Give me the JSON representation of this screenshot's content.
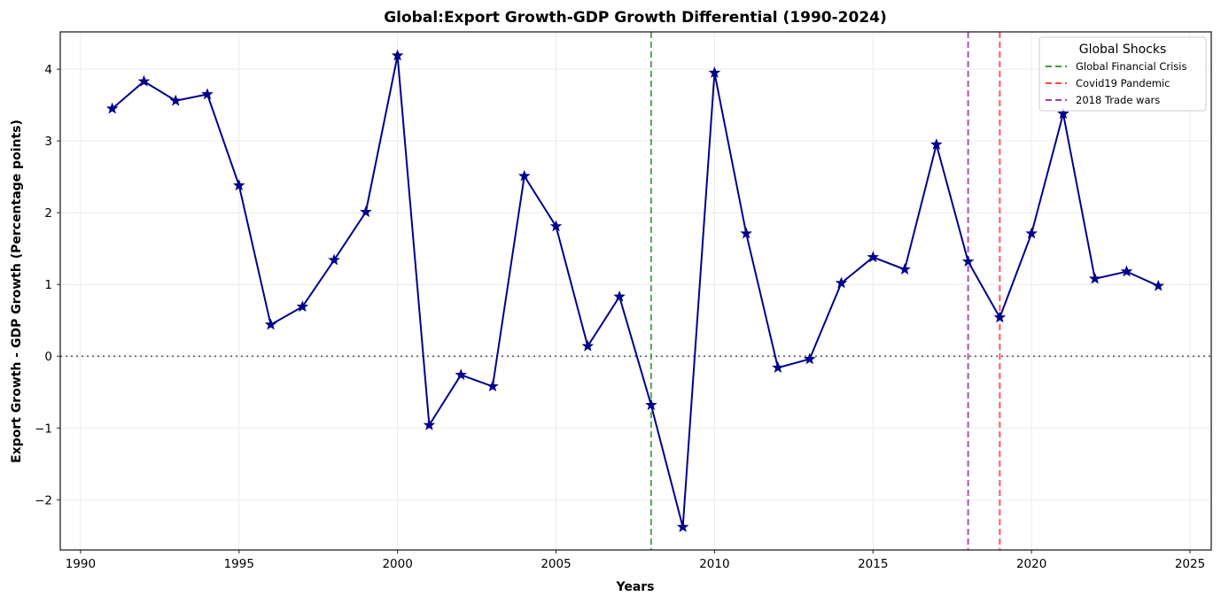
{
  "chart_data": {
    "type": "line",
    "title": "Global:Export Growth-GDP Growth Differential (1990-2024)",
    "xlabel": "Years",
    "ylabel": "Export Growth - GDP Growth (Percentage points)",
    "xlim": [
      1989.36,
      2025.67
    ],
    "ylim": [
      -2.7,
      4.52
    ],
    "xticks": [
      1990,
      1995,
      2000,
      2005,
      2010,
      2015,
      2020,
      2025
    ],
    "xtick_labels": [
      "1990",
      "1995",
      "2000",
      "2005",
      "2010",
      "2015",
      "2020",
      "2025"
    ],
    "yticks": [
      -2,
      -1,
      0,
      1,
      2,
      3,
      4
    ],
    "ytick_labels": [
      "−2",
      "−1",
      "0",
      "1",
      "2",
      "3",
      "4"
    ],
    "grid": true,
    "series": [
      {
        "name": "Export Growth - GDP Growth",
        "color": "#00008b",
        "marker": "star",
        "x": [
          1991,
          1992,
          1993,
          1994,
          1995,
          1996,
          1997,
          1998,
          1999,
          2000,
          2001,
          2002,
          2003,
          2004,
          2005,
          2006,
          2007,
          2008,
          2009,
          2010,
          2011,
          2012,
          2013,
          2014,
          2015,
          2016,
          2017,
          2018,
          2019,
          2020,
          2021,
          2022,
          2023,
          2024
        ],
        "y": [
          3.45,
          3.83,
          3.56,
          3.65,
          2.38,
          0.44,
          0.69,
          1.34,
          2.01,
          4.19,
          -0.96,
          -0.26,
          -0.42,
          2.51,
          1.81,
          0.14,
          0.83,
          -0.68,
          -2.38,
          3.95,
          1.71,
          -0.16,
          -0.04,
          1.02,
          1.38,
          1.21,
          2.95,
          1.32,
          0.54,
          1.71,
          3.38,
          1.08,
          1.18,
          0.98
        ]
      }
    ],
    "reference_line": {
      "y": 0,
      "style": "dotted",
      "color": "#666666"
    },
    "vertical_lines": [
      {
        "x": 2008,
        "label": "Global Financial Crisis",
        "color": "#3c9c3c"
      },
      {
        "x": 2019,
        "label": "Covid19 Pandemic",
        "color": "#ff4444"
      },
      {
        "x": 2018,
        "label": "2018 Trade wars",
        "color": "#a040a8"
      }
    ],
    "legend": {
      "title": "Global Shocks",
      "position": "top-right",
      "entries": [
        "Global Financial Crisis",
        "Covid19 Pandemic",
        "2018 Trade wars"
      ]
    }
  }
}
